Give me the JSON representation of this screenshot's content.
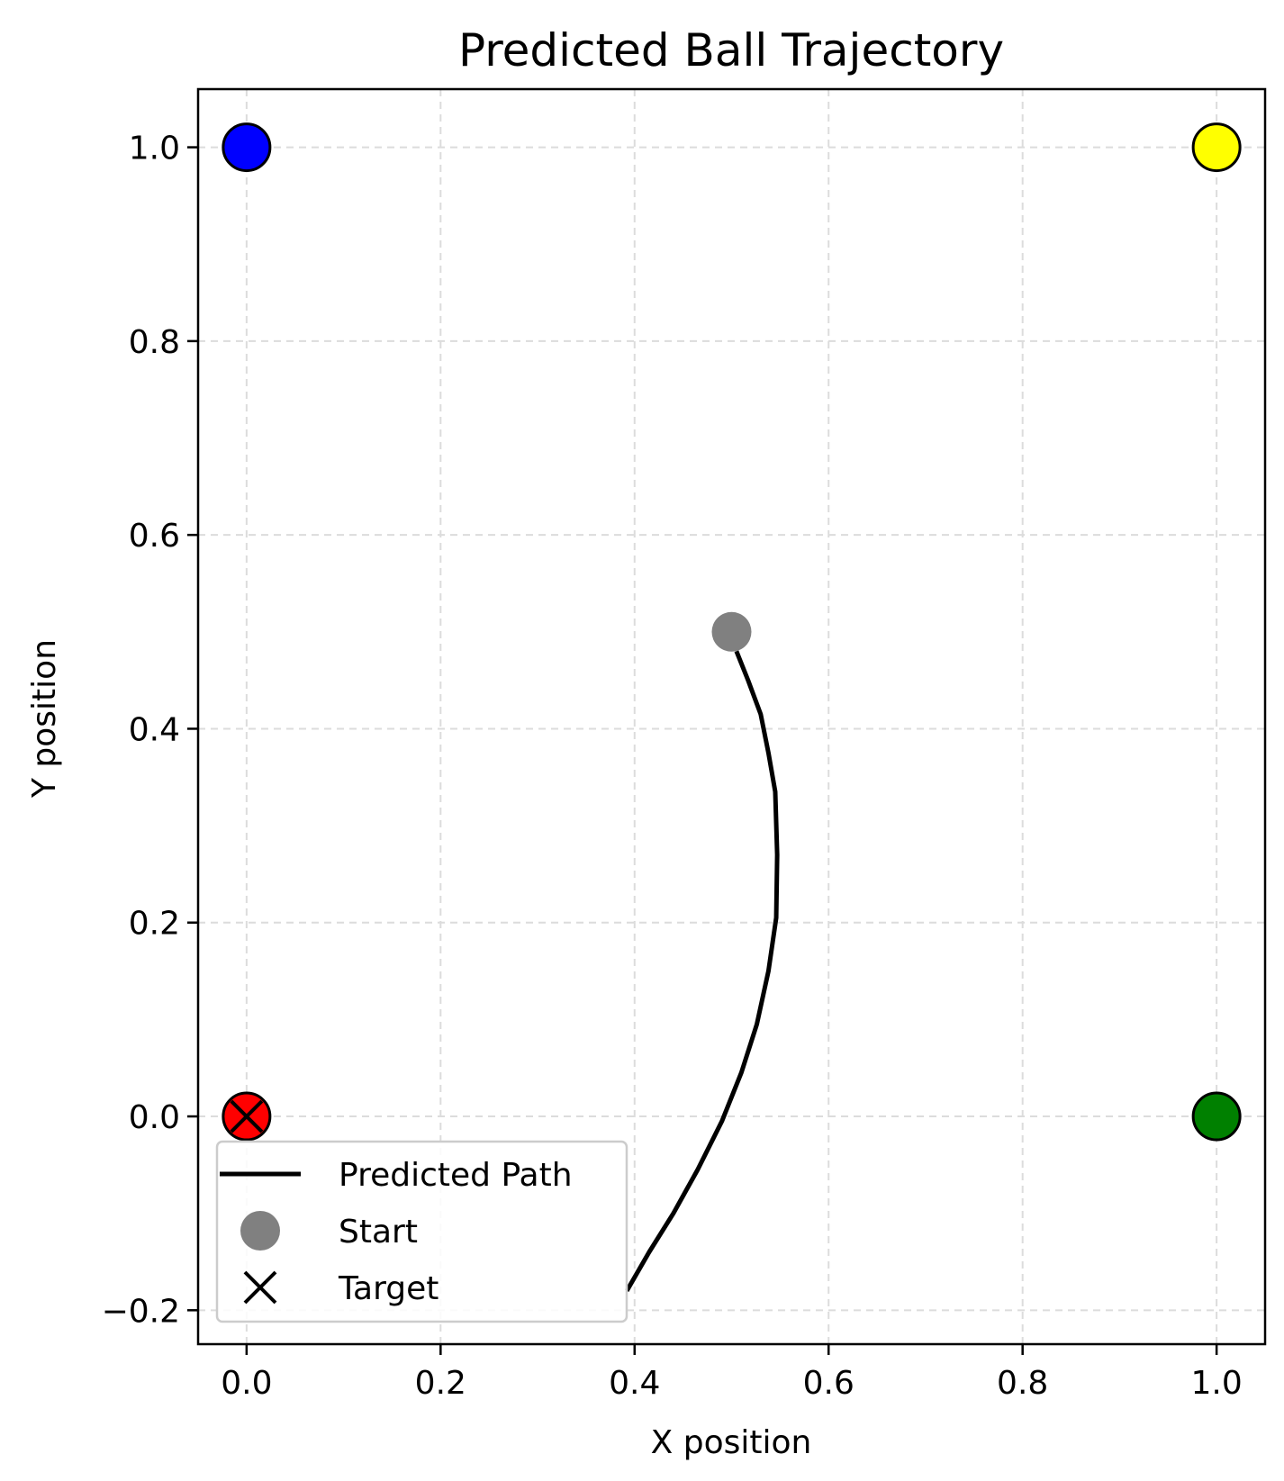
{
  "chart_data": {
    "type": "scatter",
    "title": "Predicted Ball Trajectory",
    "xlabel": "X position",
    "ylabel": "Y position",
    "xlim": [
      -0.05,
      1.05
    ],
    "ylim": [
      -0.235,
      1.06
    ],
    "xticks": [
      0.0,
      0.2,
      0.4,
      0.6,
      0.8,
      1.0
    ],
    "xtick_labels": [
      "0.0",
      "0.2",
      "0.4",
      "0.6",
      "0.8",
      "1.0"
    ],
    "yticks": [
      -0.2,
      0.0,
      0.2,
      0.4,
      0.6,
      0.8,
      1.0
    ],
    "ytick_labels": [
      "−0.2",
      "0.0",
      "0.2",
      "0.4",
      "0.6",
      "0.8",
      "1.0"
    ],
    "grid": true,
    "legend_position": "lower-left",
    "corner_points": [
      {
        "x": 0.0,
        "y": 1.0,
        "color": "#0000ff"
      },
      {
        "x": 1.0,
        "y": 1.0,
        "color": "#ffff00"
      },
      {
        "x": 0.0,
        "y": 0.0,
        "color": "#ff0000"
      },
      {
        "x": 1.0,
        "y": 0.0,
        "color": "#008000"
      }
    ],
    "series": [
      {
        "name": "Predicted Path",
        "kind": "line",
        "color": "#000000",
        "x": [
          0.505,
          0.517,
          0.53,
          0.538,
          0.545,
          0.547,
          0.546,
          0.538,
          0.526,
          0.51,
          0.49,
          0.465,
          0.44,
          0.415,
          0.392
        ],
        "y": [
          0.48,
          0.45,
          0.415,
          0.375,
          0.335,
          0.27,
          0.205,
          0.15,
          0.095,
          0.045,
          -0.005,
          -0.055,
          -0.1,
          -0.14,
          -0.18
        ]
      },
      {
        "name": "Start",
        "kind": "marker",
        "marker": "circle",
        "color": "#808080",
        "x": [
          0.5
        ],
        "y": [
          0.5
        ]
      },
      {
        "name": "Target",
        "kind": "marker",
        "marker": "x",
        "color": "#000000",
        "x": [
          0.0
        ],
        "y": [
          0.0
        ]
      }
    ]
  }
}
